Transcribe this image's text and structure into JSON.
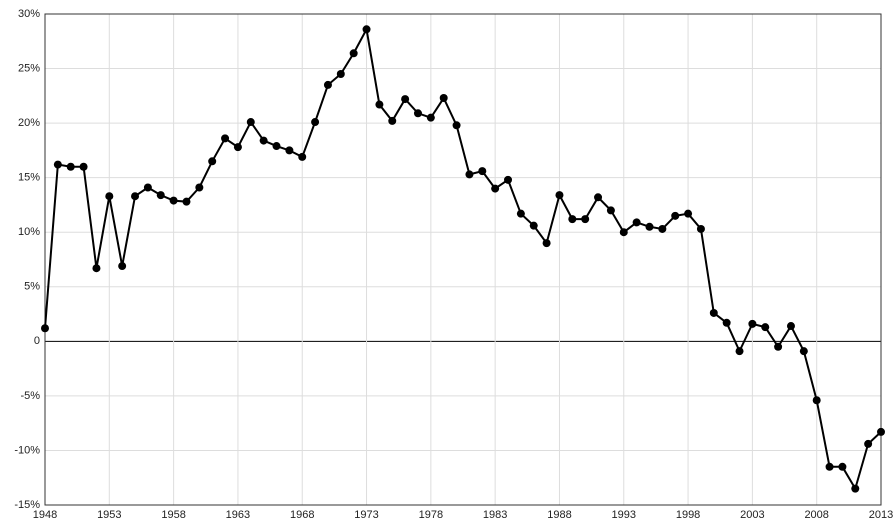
{
  "chart_data": {
    "type": "line",
    "x": [
      1948,
      1949,
      1950,
      1951,
      1952,
      1953,
      1954,
      1955,
      1956,
      1957,
      1958,
      1959,
      1960,
      1961,
      1962,
      1963,
      1964,
      1965,
      1966,
      1967,
      1968,
      1969,
      1970,
      1971,
      1972,
      1973,
      1974,
      1975,
      1976,
      1977,
      1978,
      1979,
      1980,
      1981,
      1982,
      1983,
      1984,
      1985,
      1986,
      1987,
      1988,
      1989,
      1990,
      1991,
      1992,
      1993,
      1994,
      1995,
      1996,
      1997,
      1998,
      1999,
      2000,
      2001,
      2002,
      2003,
      2004,
      2005,
      2006,
      2007,
      2008,
      2009,
      2010,
      2011,
      2012,
      2013
    ],
    "series": [
      {
        "color": "#000000",
        "values": [
          1.2,
          16.2,
          16.0,
          16.0,
          6.7,
          13.3,
          6.9,
          13.3,
          14.1,
          13.4,
          12.9,
          12.8,
          14.1,
          16.5,
          18.6,
          17.8,
          20.1,
          18.4,
          17.9,
          17.5,
          16.9,
          20.1,
          23.5,
          24.5,
          26.4,
          28.6,
          21.7,
          20.2,
          22.2,
          20.9,
          20.5,
          22.3,
          19.8,
          15.3,
          15.6,
          14.0,
          14.8,
          11.7,
          10.6,
          9.0,
          13.4,
          11.2,
          11.2,
          13.2,
          12.0,
          10.0,
          10.9,
          10.5,
          10.3,
          11.5,
          11.7,
          10.3,
          2.6,
          1.7,
          -0.9,
          1.6,
          1.3,
          -0.5,
          1.4,
          -0.9,
          -5.4,
          -11.5,
          -11.5,
          -13.5,
          -9.4,
          -8.3
        ]
      }
    ],
    "xlim": [
      1948,
      2013
    ],
    "xticks": [
      1948,
      1953,
      1958,
      1963,
      1968,
      1973,
      1978,
      1983,
      1988,
      1993,
      1998,
      2003,
      2008,
      2013
    ],
    "ylim": [
      -15,
      30
    ],
    "yticks": [
      {
        "value": -15,
        "label": "-15%"
      },
      {
        "value": -10,
        "label": "-10%"
      },
      {
        "value": -5,
        "label": "-5%"
      },
      0,
      {
        "value": 5,
        "label": "5%"
      },
      {
        "value": 10,
        "label": "10%"
      },
      {
        "value": 15,
        "label": "15%"
      },
      {
        "value": 20,
        "label": "20%"
      },
      {
        "value": 25,
        "label": "25%"
      },
      {
        "value": 30,
        "label": "30%"
      }
    ],
    "grid": true
  }
}
